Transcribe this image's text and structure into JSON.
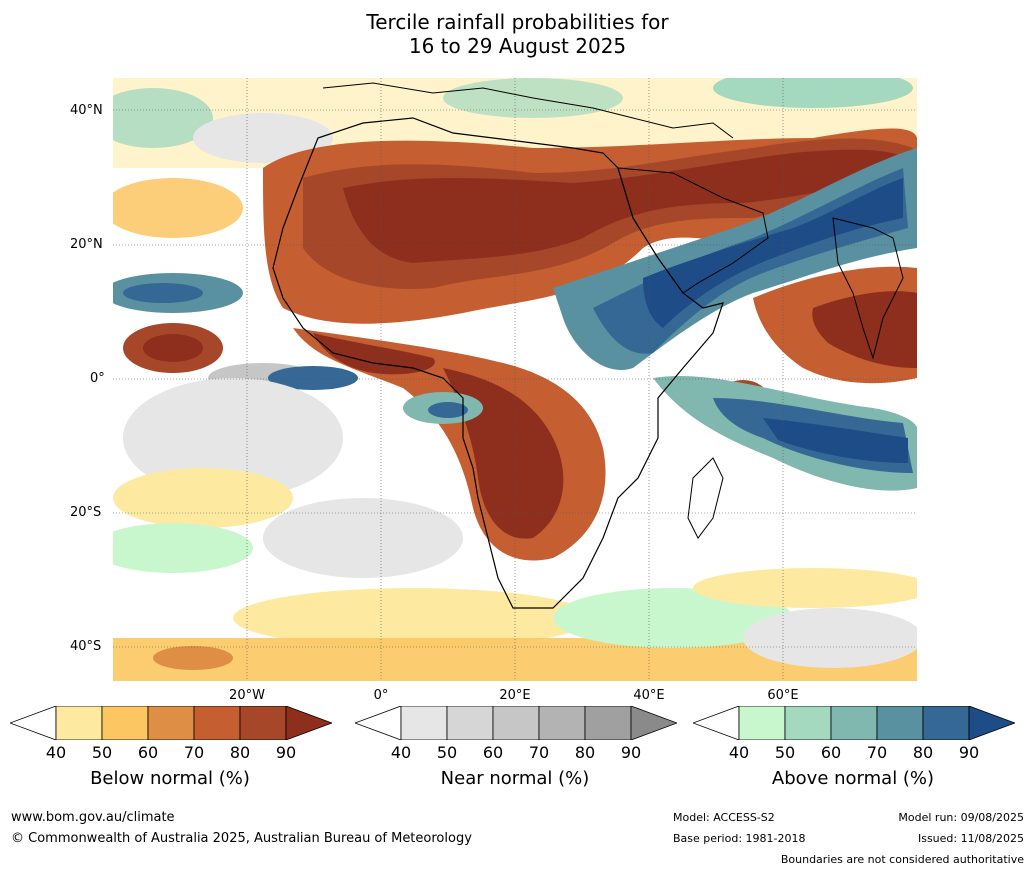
{
  "title_line1": "Tercile rainfall probabilities for",
  "title_line2": "16 to 29 August 2025",
  "lat_labels": [
    "40°N",
    "20°N",
    "0°",
    "20°S",
    "40°S"
  ],
  "lon_labels": [
    "20°W",
    "0°",
    "20°E",
    "40°E",
    "60°E"
  ],
  "colorbars": [
    {
      "name": "below",
      "title": "Below normal (%)",
      "ticks": [
        "40",
        "50",
        "60",
        "70",
        "80",
        "90"
      ],
      "colors": [
        "#ffffff",
        "#fdeaa0",
        "#fcc662",
        "#df8e46",
        "#c55f32",
        "#a6472a",
        "#8e2f1e"
      ]
    },
    {
      "name": "near",
      "title": "Near normal (%)",
      "ticks": [
        "40",
        "50",
        "60",
        "70",
        "80",
        "90"
      ],
      "colors": [
        "#ffffff",
        "#e6e6e6",
        "#d6d6d6",
        "#c6c6c6",
        "#b3b3b3",
        "#a0a0a0",
        "#8a8a8a"
      ]
    },
    {
      "name": "above",
      "title": "Above normal (%)",
      "ticks": [
        "40",
        "50",
        "60",
        "70",
        "80",
        "90"
      ],
      "colors": [
        "#ffffff",
        "#c9f7cd",
        "#a4d8bf",
        "#80b7ae",
        "#5a91a0",
        "#356895",
        "#1d4c86"
      ]
    }
  ],
  "footer": {
    "website": "www.bom.gov.au/climate",
    "copyright": "© Commonwealth of Australia 2025, Australian Bureau of Meteorology",
    "model": "Model: ACCESS-S2",
    "base_period": "Base period: 1981-2018",
    "model_run": "Model run: 09/08/2025",
    "issued": "Issued: 11/08/2025",
    "disclaimer": "Boundaries are not considered authoritative"
  }
}
